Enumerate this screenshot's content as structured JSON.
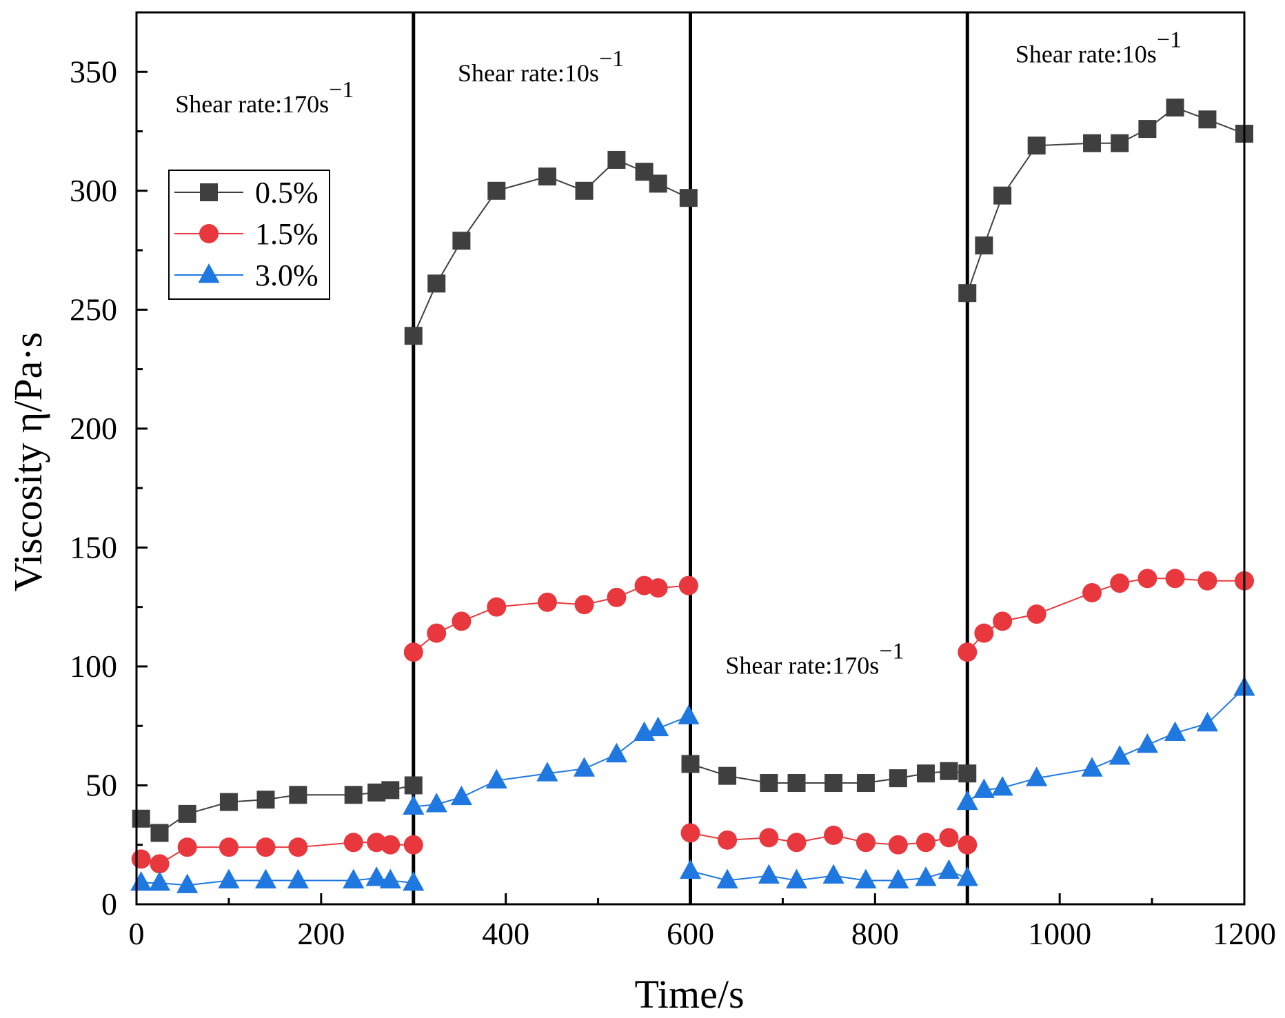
{
  "chart_data": {
    "type": "scatter",
    "title": "",
    "xlabel": "Time/s",
    "ylabel": "Viscosity η/Pa·s",
    "xlim": [
      0,
      1200
    ],
    "ylim": [
      0,
      375
    ],
    "x_ticks": [
      0,
      200,
      400,
      600,
      800,
      1000,
      1200
    ],
    "y_ticks": [
      0,
      50,
      100,
      150,
      200,
      250,
      300,
      350
    ],
    "grid": false,
    "legend_position": "upper-left",
    "phase_boundaries": [
      300,
      600,
      900
    ],
    "annotations": [
      {
        "text": "Shear rate:170s",
        "sup": "−1",
        "x": 42,
        "y": 333
      },
      {
        "text": "Shear rate:10s",
        "sup": "−1",
        "x": 348,
        "y": 346
      },
      {
        "text": "Shear rate:170s",
        "sup": "−1",
        "x": 638,
        "y": 97
      },
      {
        "text": "Shear rate:10s",
        "sup": "−1",
        "x": 952,
        "y": 354
      }
    ],
    "series": [
      {
        "name": "0.5%",
        "color": "#3f3f3f",
        "marker": "square",
        "segments": [
          [
            [
              5,
              36
            ],
            [
              25,
              30
            ],
            [
              55,
              38
            ],
            [
              100,
              43
            ],
            [
              140,
              44
            ],
            [
              175,
              46
            ],
            [
              235,
              46
            ],
            [
              260,
              47
            ],
            [
              275,
              48
            ],
            [
              300,
              50
            ]
          ],
          [
            [
              300,
              239
            ],
            [
              325,
              261
            ],
            [
              352,
              279
            ],
            [
              390,
              300
            ],
            [
              445,
              306
            ],
            [
              485,
              300
            ],
            [
              520,
              313
            ],
            [
              550,
              308
            ],
            [
              565,
              303
            ],
            [
              598,
              297
            ]
          ],
          [
            [
              600,
              59
            ],
            [
              640,
              54
            ],
            [
              685,
              51
            ],
            [
              715,
              51
            ],
            [
              755,
              51
            ],
            [
              790,
              51
            ],
            [
              825,
              53
            ],
            [
              855,
              55
            ],
            [
              880,
              56
            ],
            [
              900,
              55
            ]
          ],
          [
            [
              900,
              257
            ],
            [
              918,
              277
            ],
            [
              938,
              298
            ],
            [
              975,
              319
            ],
            [
              1035,
              320
            ],
            [
              1065,
              320
            ],
            [
              1095,
              326
            ],
            [
              1125,
              335
            ],
            [
              1160,
              330
            ],
            [
              1200,
              324
            ]
          ]
        ]
      },
      {
        "name": "1.5%",
        "color": "#e8383d",
        "marker": "circle",
        "segments": [
          [
            [
              5,
              19
            ],
            [
              25,
              17
            ],
            [
              55,
              24
            ],
            [
              100,
              24
            ],
            [
              140,
              24
            ],
            [
              175,
              24
            ],
            [
              235,
              26
            ],
            [
              260,
              26
            ],
            [
              275,
              25
            ],
            [
              300,
              25
            ]
          ],
          [
            [
              300,
              106
            ],
            [
              325,
              114
            ],
            [
              352,
              119
            ],
            [
              390,
              125
            ],
            [
              445,
              127
            ],
            [
              485,
              126
            ],
            [
              520,
              129
            ],
            [
              550,
              134
            ],
            [
              565,
              133
            ],
            [
              598,
              134
            ]
          ],
          [
            [
              600,
              30
            ],
            [
              640,
              27
            ],
            [
              685,
              28
            ],
            [
              715,
              26
            ],
            [
              755,
              29
            ],
            [
              790,
              26
            ],
            [
              825,
              25
            ],
            [
              855,
              26
            ],
            [
              880,
              28
            ],
            [
              900,
              25
            ]
          ],
          [
            [
              900,
              106
            ],
            [
              918,
              114
            ],
            [
              938,
              119
            ],
            [
              975,
              122
            ],
            [
              1035,
              131
            ],
            [
              1065,
              135
            ],
            [
              1095,
              137
            ],
            [
              1125,
              137
            ],
            [
              1160,
              136
            ],
            [
              1200,
              136
            ]
          ]
        ]
      },
      {
        "name": "3.0%",
        "color": "#1f77e0",
        "marker": "triangle",
        "segments": [
          [
            [
              5,
              9
            ],
            [
              25,
              9
            ],
            [
              55,
              8
            ],
            [
              100,
              10
            ],
            [
              140,
              10
            ],
            [
              175,
              10
            ],
            [
              235,
              10
            ],
            [
              260,
              11
            ],
            [
              275,
              10
            ],
            [
              300,
              9
            ]
          ],
          [
            [
              300,
              41
            ],
            [
              325,
              42
            ],
            [
              352,
              45
            ],
            [
              390,
              52
            ],
            [
              445,
              55
            ],
            [
              485,
              57
            ],
            [
              520,
              63
            ],
            [
              550,
              72
            ],
            [
              565,
              74
            ],
            [
              598,
              79
            ]
          ],
          [
            [
              600,
              14
            ],
            [
              640,
              10
            ],
            [
              685,
              12
            ],
            [
              715,
              10
            ],
            [
              755,
              12
            ],
            [
              790,
              10
            ],
            [
              825,
              10
            ],
            [
              855,
              11
            ],
            [
              880,
              14
            ],
            [
              900,
              11
            ]
          ],
          [
            [
              900,
              43
            ],
            [
              918,
              48
            ],
            [
              938,
              49
            ],
            [
              975,
              53
            ],
            [
              1035,
              57
            ],
            [
              1065,
              62
            ],
            [
              1095,
              67
            ],
            [
              1125,
              72
            ],
            [
              1160,
              76
            ],
            [
              1200,
              91
            ]
          ]
        ]
      }
    ]
  }
}
